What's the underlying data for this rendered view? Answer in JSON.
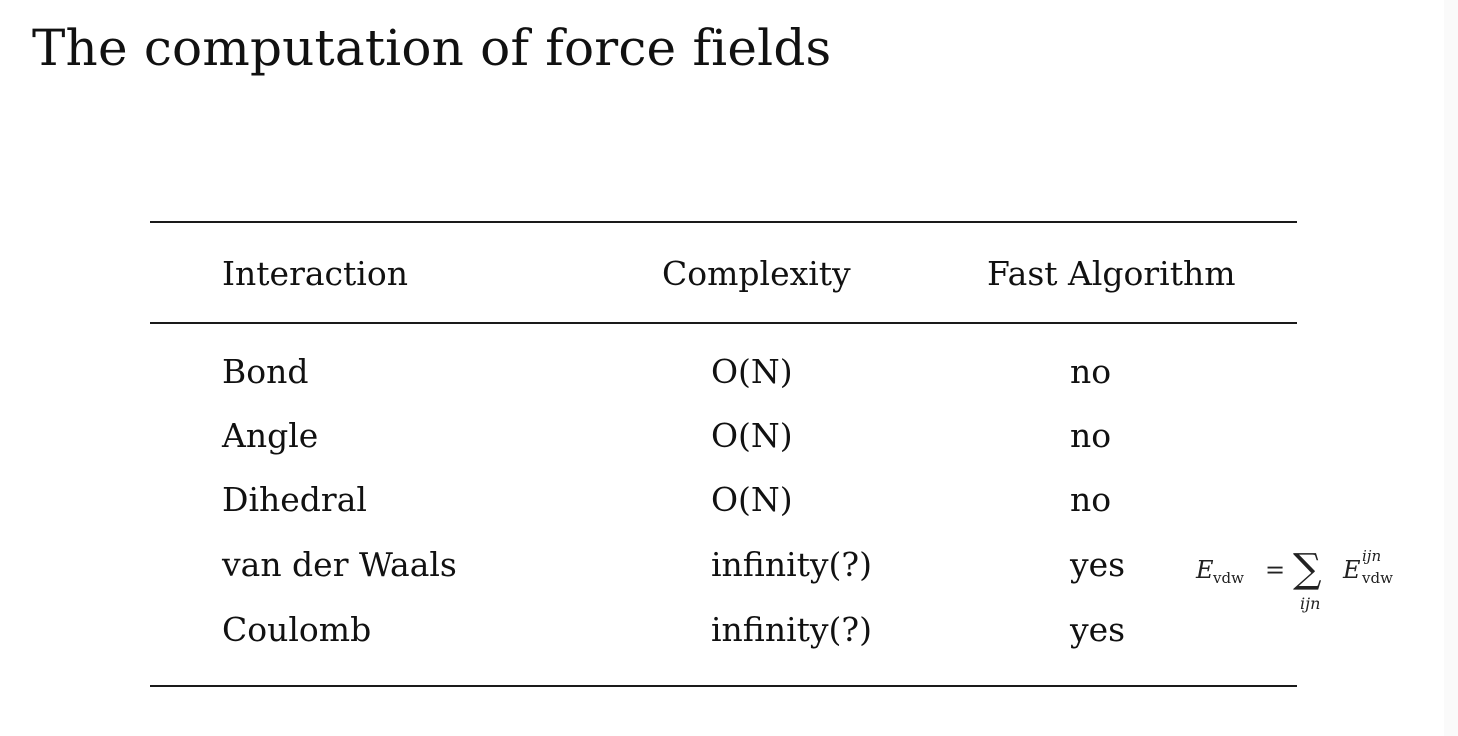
{
  "slide": {
    "title": "The computation of force fields"
  },
  "table": {
    "headers": [
      "Interaction",
      "Complexity",
      "Fast Algorithm"
    ],
    "rows": [
      [
        "Bond",
        "O(N)",
        "no"
      ],
      [
        "Angle",
        "O(N)",
        "no"
      ],
      [
        "Dihedral",
        "O(N)",
        "no"
      ],
      [
        "van der Waals",
        "infinity(?)",
        "yes"
      ],
      [
        "Coulomb",
        "infinity(?)",
        "yes"
      ]
    ]
  },
  "formula": {
    "lhs_symbol": "E",
    "lhs_subscript": "vdw",
    "equals": "=",
    "sum_symbol": "∑",
    "sum_index": "ijn",
    "rhs_symbol": "E",
    "rhs_superscript": "ijn",
    "rhs_subscript": "vdw"
  }
}
